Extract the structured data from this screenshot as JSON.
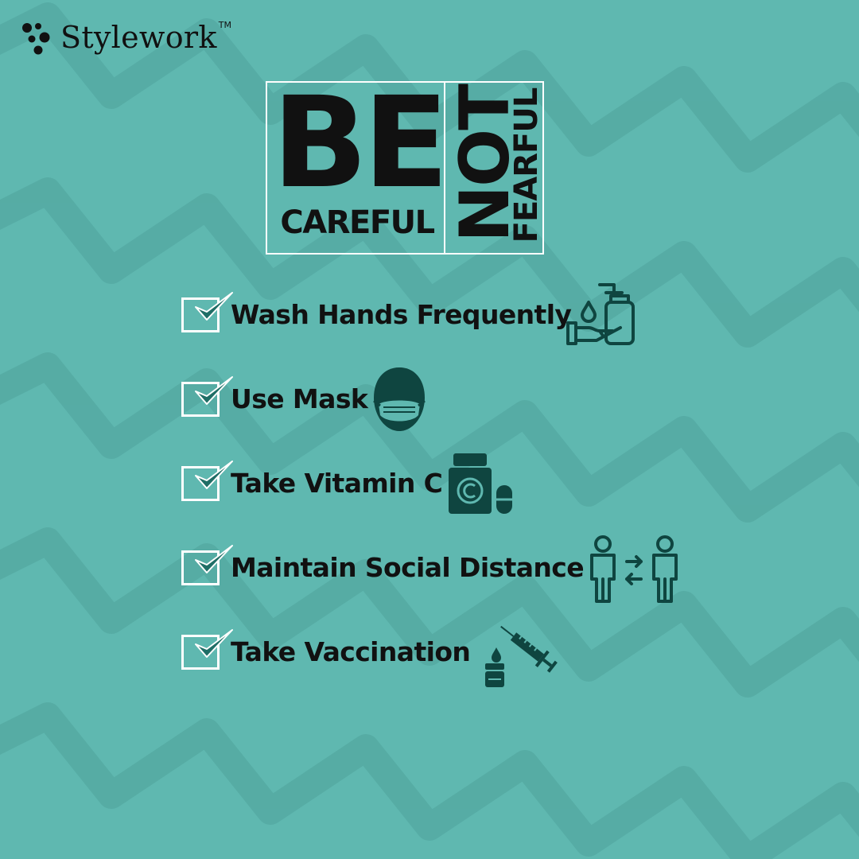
{
  "brand": {
    "name": "Stylework",
    "trademark": "TM",
    "icon": "molecule-dots-icon"
  },
  "headline": {
    "line1": "BE",
    "line2": "CAREFUL",
    "vertical1": "NOT",
    "vertical2": "FEARFUL"
  },
  "checklist": [
    {
      "label": "Wash Hands Frequently",
      "icon": "hand-sanitizer-icon"
    },
    {
      "label": "Use Mask",
      "icon": "face-mask-icon"
    },
    {
      "label": "Take Vitamin C",
      "icon": "vitamin-bottle-icon"
    },
    {
      "label": "Maintain Social Distance",
      "icon": "social-distance-icon"
    },
    {
      "label": "Take Vaccination",
      "icon": "syringe-vaccine-icon"
    }
  ],
  "colors": {
    "background": "#5fb8b0",
    "pattern": "#4ea39b",
    "icon_dark": "#0f4540",
    "check_accent": "#1f6e66",
    "text": "#111111",
    "frame": "#ffffff"
  }
}
